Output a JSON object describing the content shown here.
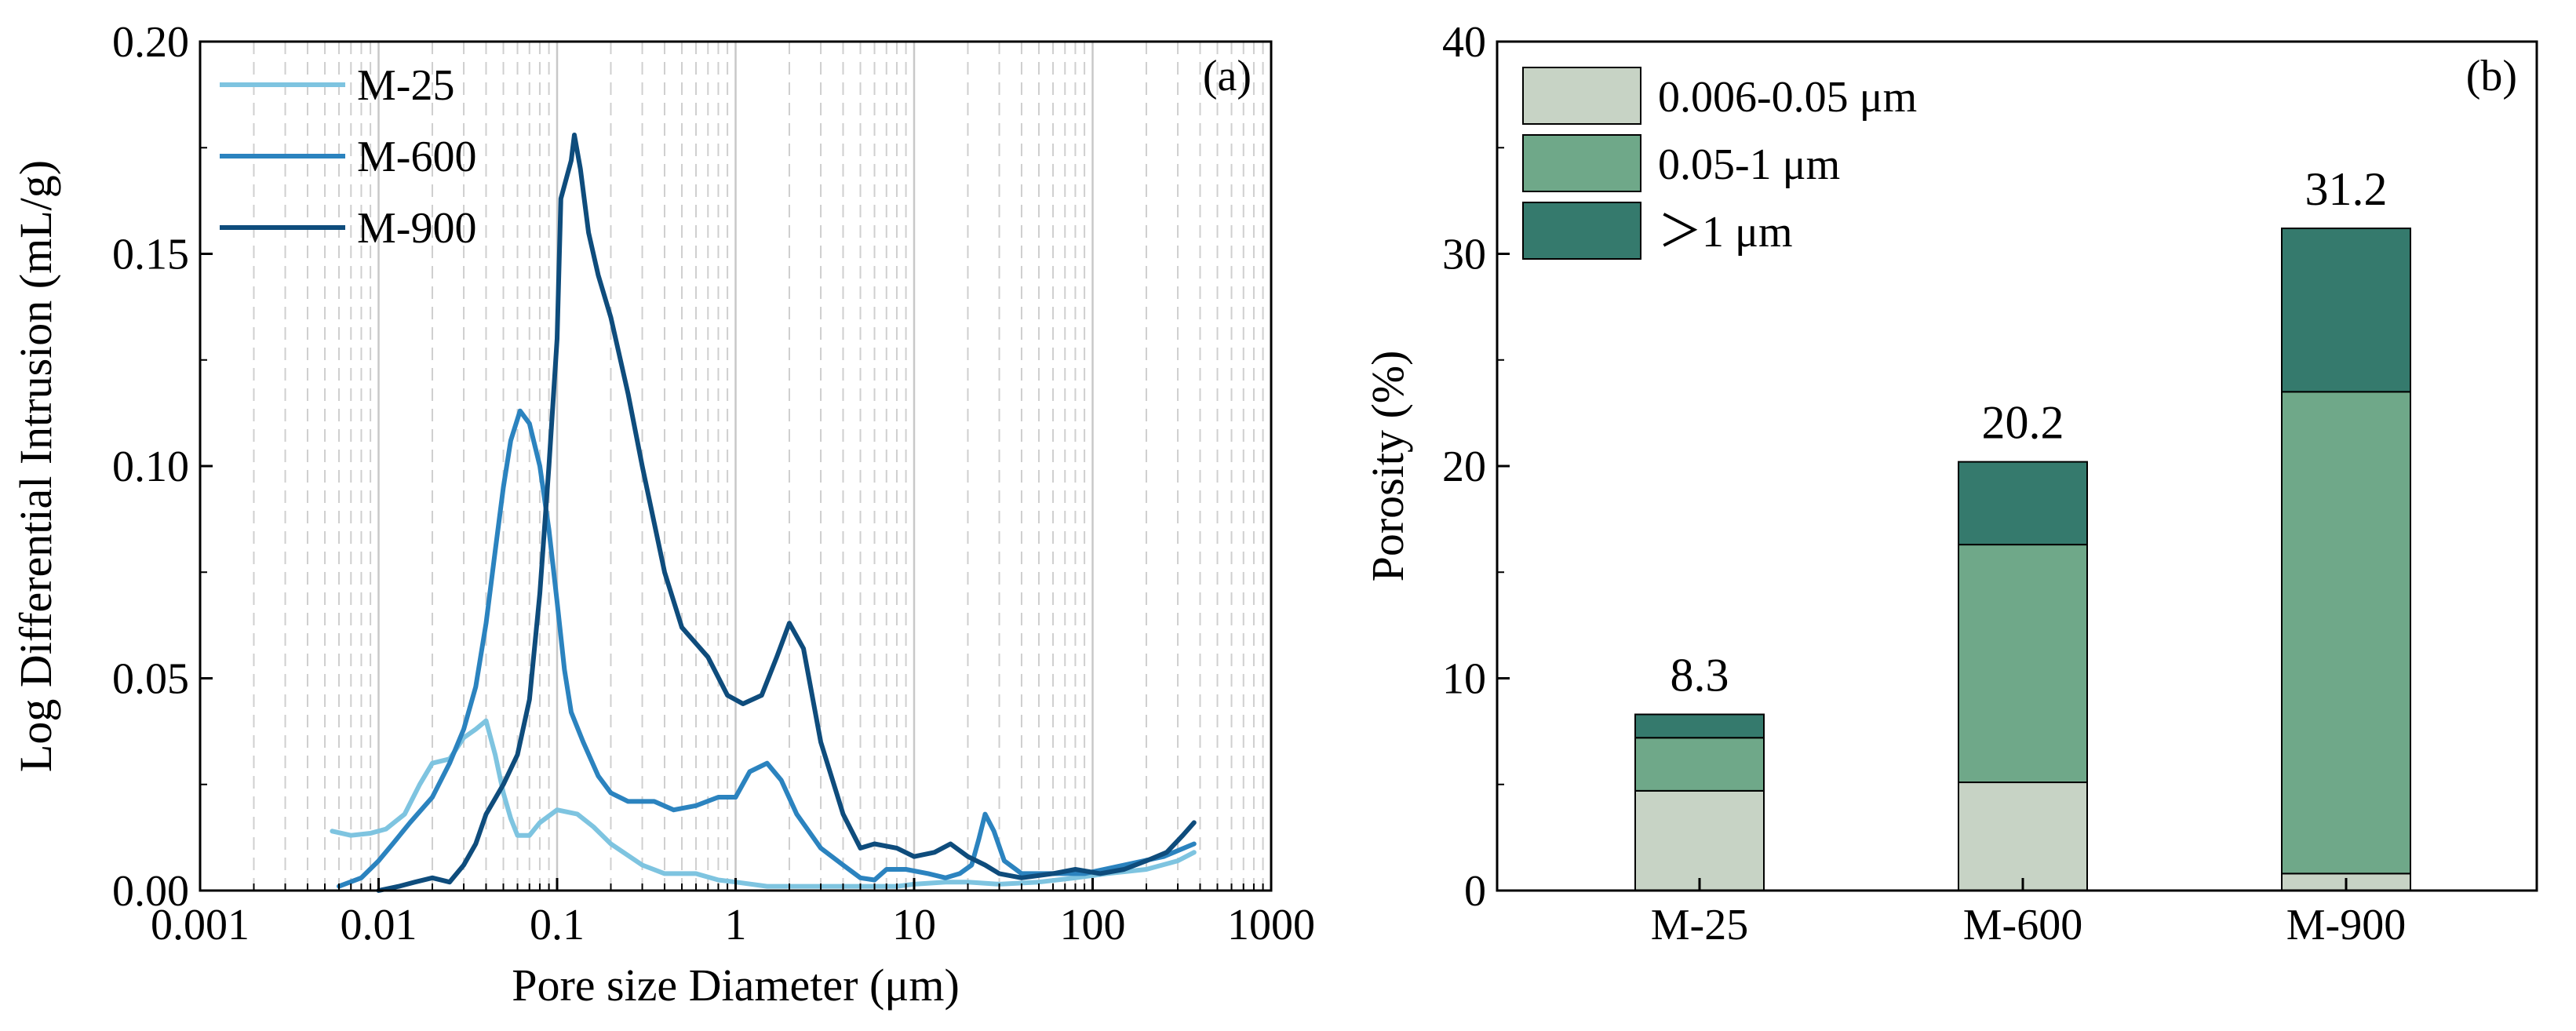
{
  "chart_data": [
    {
      "panel": "(a)",
      "type": "line",
      "xscale": "log",
      "xlabel": "Pore size Diameter (μm)",
      "ylabel": "Log Differential Intrusion (mL/g)",
      "xlim": [
        0.001,
        1000
      ],
      "ylim": [
        0,
        0.2
      ],
      "xticks": [
        0.001,
        0.01,
        0.1,
        1,
        10,
        100,
        1000
      ],
      "xtick_labels": [
        "0.001",
        "0.01",
        "0.1",
        "1",
        "10",
        "100",
        "1000"
      ],
      "yticks": [
        0,
        0.05,
        0.1,
        0.15,
        0.2
      ],
      "ytick_labels": [
        "0.00",
        "0.05",
        "0.10",
        "0.15",
        "0.20"
      ],
      "grid": "vertical dashed minor, solid at decades",
      "legend_position": "top-left",
      "series": [
        {
          "name": "M-25",
          "color": "#7ec4e0",
          "points": [
            [
              0.0055,
              0.014
            ],
            [
              0.007,
              0.013
            ],
            [
              0.009,
              0.0135
            ],
            [
              0.011,
              0.0145
            ],
            [
              0.014,
              0.018
            ],
            [
              0.017,
              0.025
            ],
            [
              0.02,
              0.03
            ],
            [
              0.025,
              0.031
            ],
            [
              0.03,
              0.036
            ],
            [
              0.035,
              0.038
            ],
            [
              0.04,
              0.04
            ],
            [
              0.045,
              0.032
            ],
            [
              0.05,
              0.023
            ],
            [
              0.055,
              0.017
            ],
            [
              0.06,
              0.013
            ],
            [
              0.07,
              0.013
            ],
            [
              0.08,
              0.016
            ],
            [
              0.1,
              0.019
            ],
            [
              0.13,
              0.018
            ],
            [
              0.16,
              0.015
            ],
            [
              0.2,
              0.011
            ],
            [
              0.3,
              0.006
            ],
            [
              0.4,
              0.004
            ],
            [
              0.6,
              0.004
            ],
            [
              0.8,
              0.0025
            ],
            [
              1,
              0.002
            ],
            [
              1.5,
              0.001
            ],
            [
              2,
              0.001
            ],
            [
              3,
              0.001
            ],
            [
              5,
              0.001
            ],
            [
              8,
              0.001
            ],
            [
              10,
              0.0015
            ],
            [
              15,
              0.002
            ],
            [
              20,
              0.002
            ],
            [
              30,
              0.0015
            ],
            [
              50,
              0.002
            ],
            [
              80,
              0.003
            ],
            [
              120,
              0.004
            ],
            [
              200,
              0.005
            ],
            [
              300,
              0.007
            ],
            [
              370,
              0.009
            ]
          ]
        },
        {
          "name": "M-600",
          "color": "#2b83bf",
          "points": [
            [
              0.006,
              0.001
            ],
            [
              0.008,
              0.003
            ],
            [
              0.01,
              0.007
            ],
            [
              0.012,
              0.011
            ],
            [
              0.015,
              0.016
            ],
            [
              0.02,
              0.022
            ],
            [
              0.025,
              0.03
            ],
            [
              0.03,
              0.038
            ],
            [
              0.035,
              0.048
            ],
            [
              0.04,
              0.063
            ],
            [
              0.045,
              0.08
            ],
            [
              0.05,
              0.095
            ],
            [
              0.055,
              0.106
            ],
            [
              0.062,
              0.113
            ],
            [
              0.07,
              0.11
            ],
            [
              0.08,
              0.1
            ],
            [
              0.09,
              0.085
            ],
            [
              0.1,
              0.068
            ],
            [
              0.11,
              0.052
            ],
            [
              0.12,
              0.042
            ],
            [
              0.14,
              0.035
            ],
            [
              0.17,
              0.027
            ],
            [
              0.2,
              0.023
            ],
            [
              0.25,
              0.021
            ],
            [
              0.35,
              0.021
            ],
            [
              0.45,
              0.019
            ],
            [
              0.6,
              0.02
            ],
            [
              0.8,
              0.022
            ],
            [
              1,
              0.022
            ],
            [
              1.2,
              0.028
            ],
            [
              1.5,
              0.03
            ],
            [
              1.8,
              0.026
            ],
            [
              2.2,
              0.018
            ],
            [
              3,
              0.01
            ],
            [
              4,
              0.006
            ],
            [
              5,
              0.003
            ],
            [
              6,
              0.0025
            ],
            [
              7,
              0.005
            ],
            [
              9,
              0.005
            ],
            [
              12,
              0.004
            ],
            [
              15,
              0.003
            ],
            [
              18,
              0.004
            ],
            [
              21,
              0.006
            ],
            [
              23,
              0.012
            ],
            [
              25,
              0.018
            ],
            [
              28,
              0.014
            ],
            [
              32,
              0.007
            ],
            [
              40,
              0.004
            ],
            [
              60,
              0.004
            ],
            [
              90,
              0.004
            ],
            [
              150,
              0.006
            ],
            [
              250,
              0.008
            ],
            [
              370,
              0.011
            ]
          ]
        },
        {
          "name": "M-900",
          "color": "#0e4c7c",
          "points": [
            [
              0.01,
              0.0
            ],
            [
              0.013,
              0.001
            ],
            [
              0.016,
              0.002
            ],
            [
              0.02,
              0.003
            ],
            [
              0.025,
              0.002
            ],
            [
              0.03,
              0.006
            ],
            [
              0.035,
              0.011
            ],
            [
              0.04,
              0.018
            ],
            [
              0.05,
              0.025
            ],
            [
              0.06,
              0.032
            ],
            [
              0.07,
              0.045
            ],
            [
              0.08,
              0.07
            ],
            [
              0.09,
              0.1
            ],
            [
              0.1,
              0.13
            ],
            [
              0.105,
              0.163
            ],
            [
              0.12,
              0.172
            ],
            [
              0.125,
              0.178
            ],
            [
              0.135,
              0.17
            ],
            [
              0.15,
              0.155
            ],
            [
              0.17,
              0.145
            ],
            [
              0.2,
              0.135
            ],
            [
              0.25,
              0.117
            ],
            [
              0.3,
              0.1
            ],
            [
              0.4,
              0.075
            ],
            [
              0.5,
              0.062
            ],
            [
              0.7,
              0.055
            ],
            [
              0.9,
              0.046
            ],
            [
              1.1,
              0.044
            ],
            [
              1.4,
              0.046
            ],
            [
              1.7,
              0.055
            ],
            [
              2,
              0.063
            ],
            [
              2.4,
              0.057
            ],
            [
              3,
              0.035
            ],
            [
              4,
              0.018
            ],
            [
              5,
              0.01
            ],
            [
              6,
              0.011
            ],
            [
              8,
              0.01
            ],
            [
              10,
              0.008
            ],
            [
              13,
              0.009
            ],
            [
              16,
              0.011
            ],
            [
              20,
              0.008
            ],
            [
              25,
              0.006
            ],
            [
              30,
              0.004
            ],
            [
              40,
              0.003
            ],
            [
              60,
              0.004
            ],
            [
              80,
              0.005
            ],
            [
              110,
              0.004
            ],
            [
              150,
              0.005
            ],
            [
              200,
              0.007
            ],
            [
              260,
              0.009
            ],
            [
              320,
              0.013
            ],
            [
              370,
              0.016
            ]
          ]
        }
      ]
    },
    {
      "panel": "(b)",
      "type": "bar",
      "stacked": true,
      "ylabel": "Porosity (%)",
      "xlabel": "",
      "ylim": [
        0,
        40
      ],
      "yticks": [
        0,
        10,
        20,
        30,
        40
      ],
      "ytick_labels": [
        "0",
        "10",
        "20",
        "30",
        "40"
      ],
      "categories": [
        "M-25",
        "M-600",
        "M-900"
      ],
      "series": [
        {
          "name": "0.006-0.05 μm",
          "color": "#c7d3c5",
          "values": [
            4.7,
            5.1,
            0.8
          ]
        },
        {
          "name": "0.05-1 μm",
          "color": "#6fa889",
          "values": [
            2.5,
            11.2,
            22.7
          ]
        },
        {
          "name": "＞1 μm",
          "color": "#357a6d",
          "values": [
            1.1,
            3.9,
            7.7
          ]
        }
      ],
      "totals": [
        "8.3",
        "20.2",
        "31.2"
      ],
      "legend_position": "top-left"
    }
  ]
}
